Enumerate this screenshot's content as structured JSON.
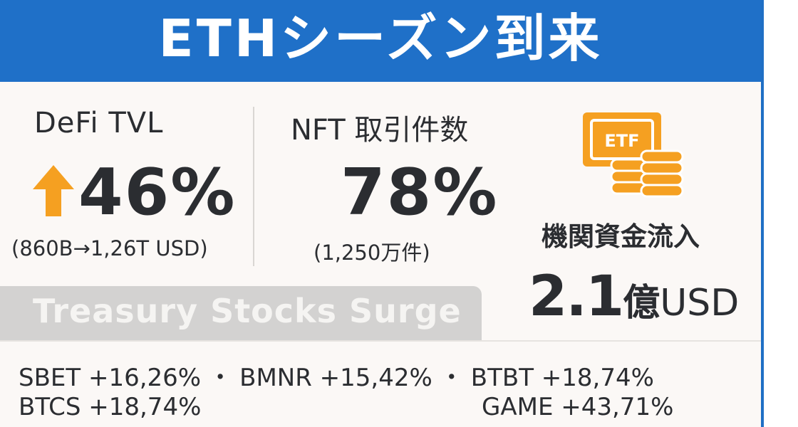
{
  "header": {
    "title": "ETHシーズン到来"
  },
  "defi": {
    "title": "DeFi TVL",
    "value": "46%",
    "sub": "(860B→1,26T USD)",
    "icon": "arrow-up-icon",
    "icon_color": "#f5a021"
  },
  "nft": {
    "title": "NFT 取引件数",
    "value": "78%",
    "sub": "(1,250万件)"
  },
  "institutional": {
    "icon": "etf-coins-icon",
    "icon_label": "ETF",
    "icon_color": "#f5a021",
    "label": "機関資金流入",
    "value_number": "2.1",
    "value_unit": "億",
    "value_currency": "USD"
  },
  "banner": {
    "title": "Treasury Stocks Surge"
  },
  "stocks": {
    "row1": [
      {
        "ticker": "SBET",
        "change": "+16,26%"
      },
      {
        "ticker": "BMNR",
        "change": "+15,42%"
      },
      {
        "ticker": "BTBT",
        "change": "+18,74%"
      }
    ],
    "row2_left": {
      "ticker": "BTCS",
      "change": "+18,74%"
    },
    "row2_right": {
      "ticker": "GAME",
      "change": "+43,71%"
    },
    "separator": "・"
  },
  "colors": {
    "header_blue": "#1f70c8",
    "accent_orange": "#f5a021",
    "text_dark": "#2b2d31",
    "banner_gray": "#d3d2d1"
  }
}
